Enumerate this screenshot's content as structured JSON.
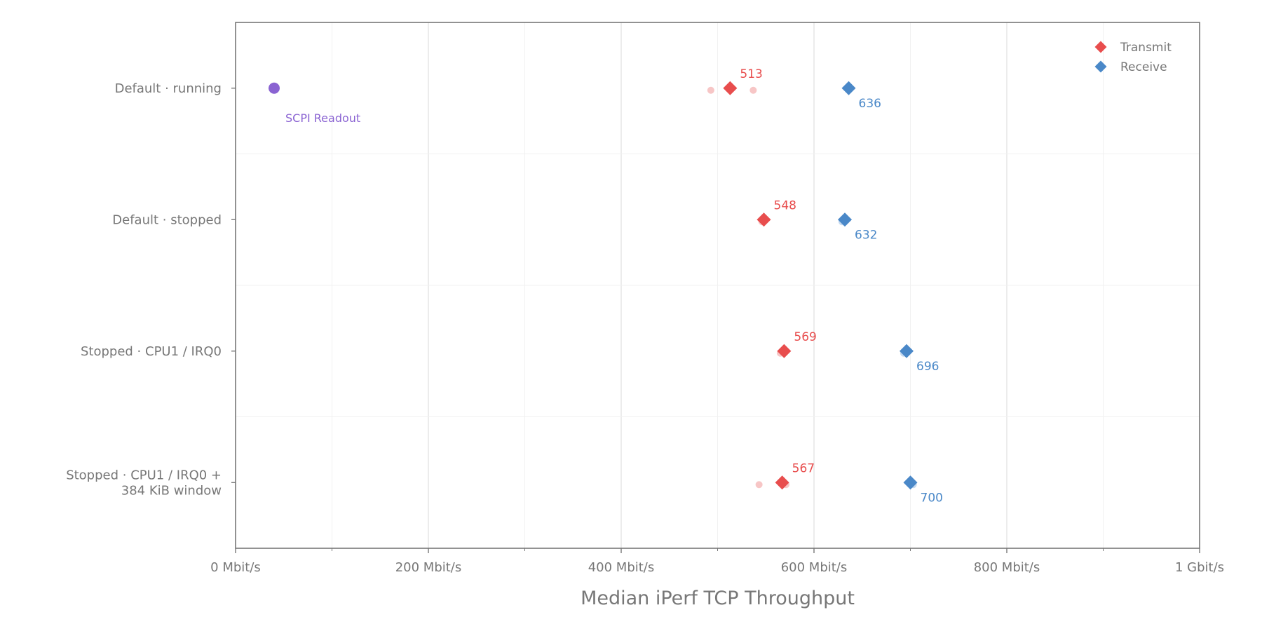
{
  "chart_data": {
    "type": "scatter",
    "orientation": "horizontal",
    "xlabel": "Median iPerf TCP Throughput",
    "xlim": [
      0,
      1000
    ],
    "x_ticks": [
      {
        "value": 0,
        "label": "0 Mbit/s"
      },
      {
        "value": 200,
        "label": "200 Mbit/s"
      },
      {
        "value": 400,
        "label": "400 Mbit/s"
      },
      {
        "value": 600,
        "label": "600 Mbit/s"
      },
      {
        "value": 800,
        "label": "800 Mbit/s"
      },
      {
        "value": 1000,
        "label": "1 Gbit/s"
      }
    ],
    "categories": [
      [
        "Default · running"
      ],
      [
        "Default · stopped"
      ],
      [
        "Stopped · CPU1 / IRQ0"
      ],
      [
        "Stopped · CPU1 / IRQ0 +",
        "384 KiB window"
      ]
    ],
    "series": [
      {
        "name": "Transmit",
        "color": "#e84d4d",
        "marker": "diamond",
        "values": [
          513,
          548,
          569,
          567
        ],
        "labels": [
          "513",
          "548",
          "569",
          "567"
        ]
      },
      {
        "name": "Receive",
        "color": "#4a88c8",
        "marker": "diamond",
        "values": [
          636,
          632,
          696,
          700
        ],
        "labels": [
          "636",
          "632",
          "696",
          "700"
        ]
      }
    ],
    "trials": {
      "Transmit": {
        "color": "#f7c6c6",
        "points": [
          {
            "category": 0,
            "value": 493
          },
          {
            "category": 0,
            "value": 537
          },
          {
            "category": 1,
            "value": 546
          },
          {
            "category": 2,
            "value": 565
          },
          {
            "category": 3,
            "value": 543
          },
          {
            "category": 3,
            "value": 571
          }
        ]
      },
      "Receive": {
        "color": "#c5daf0",
        "points": [
          {
            "category": 1,
            "value": 629
          },
          {
            "category": 2,
            "value": 693
          },
          {
            "category": 3,
            "value": 703
          }
        ]
      }
    },
    "annotation": {
      "text": "SCPI Readout",
      "category": 0,
      "value": 40,
      "color": "#8a63d2"
    },
    "legend": {
      "position": "top-right",
      "entries": [
        "Transmit",
        "Receive"
      ]
    },
    "grid": true
  }
}
